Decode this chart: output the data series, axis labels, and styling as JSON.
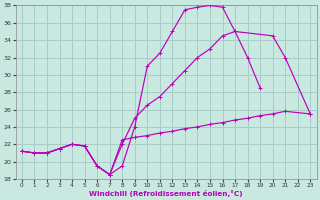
{
  "xlabel": "Windchill (Refroidissement éolien,°C)",
  "xlim": [
    -0.5,
    23.5
  ],
  "ylim": [
    18,
    38
  ],
  "xticks": [
    0,
    1,
    2,
    3,
    4,
    5,
    6,
    7,
    8,
    9,
    10,
    11,
    12,
    13,
    14,
    15,
    16,
    17,
    18,
    19,
    20,
    21,
    22,
    23
  ],
  "yticks": [
    18,
    20,
    22,
    24,
    26,
    28,
    30,
    32,
    34,
    36,
    38
  ],
  "background_color": "#c8e8e0",
  "grid_color": "#a8ccc8",
  "line_color": "#bb00bb",
  "line1_x": [
    0,
    1,
    2,
    3,
    4,
    5,
    6,
    7,
    8,
    9,
    10,
    11,
    12,
    13,
    14,
    15,
    16,
    17,
    18,
    19
  ],
  "line1_y": [
    21.2,
    21.0,
    21.0,
    21.5,
    22.0,
    21.8,
    19.5,
    18.5,
    19.5,
    24.0,
    31.0,
    32.5,
    35.0,
    37.5,
    37.8,
    38.0,
    37.8,
    35.0,
    32.0,
    28.5
  ],
  "line2_x": [
    0,
    1,
    2,
    3,
    4,
    5,
    6,
    7,
    8,
    9,
    10,
    11,
    12,
    13,
    14,
    15,
    16,
    17,
    20,
    21,
    23
  ],
  "line2_y": [
    21.2,
    21.0,
    21.0,
    21.5,
    22.0,
    21.8,
    19.5,
    18.5,
    22.0,
    25.0,
    26.5,
    27.5,
    29.0,
    30.5,
    32.0,
    33.0,
    34.5,
    35.0,
    34.5,
    32.0,
    25.5
  ],
  "line3_x": [
    0,
    1,
    2,
    3,
    4,
    5,
    6,
    7,
    8,
    9,
    10,
    11,
    12,
    13,
    14,
    15,
    16,
    17,
    18,
    19,
    20,
    21,
    23
  ],
  "line3_y": [
    21.2,
    21.0,
    21.0,
    21.5,
    22.0,
    21.8,
    19.5,
    18.5,
    22.5,
    22.8,
    23.0,
    23.3,
    23.5,
    23.8,
    24.0,
    24.3,
    24.5,
    24.8,
    25.0,
    25.3,
    25.5,
    25.8,
    25.5
  ]
}
